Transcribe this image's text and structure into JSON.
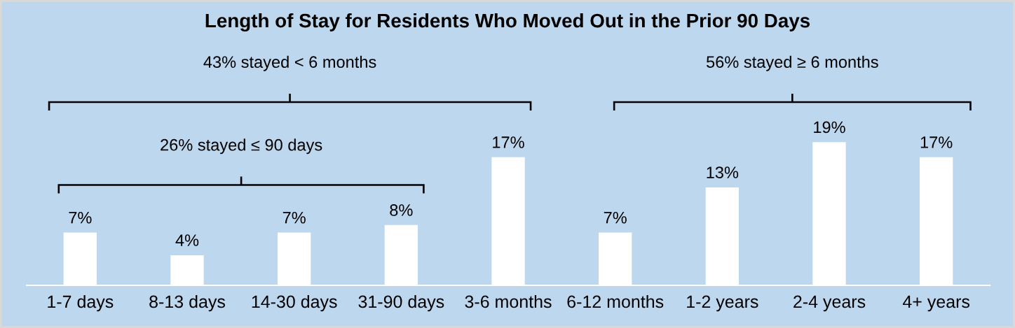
{
  "chart_data": {
    "type": "bar",
    "title": "Length of Stay for Residents Who Moved Out in the Prior 90 Days",
    "categories": [
      "1-7 days",
      "8-13 days",
      "14-30 days",
      "31-90 days",
      "3-6 months",
      "6-12 months",
      "1-2 years",
      "2-4 years",
      "4+ years"
    ],
    "values": [
      7,
      4,
      7,
      8,
      17,
      7,
      13,
      19,
      17
    ],
    "value_labels": [
      "7%",
      "4%",
      "7%",
      "8%",
      "17%",
      "7%",
      "13%",
      "19%",
      "17%"
    ],
    "color": "#ffffff",
    "annotations": [
      "43% stayed < 6 months",
      "56% stayed ≥ 6 months",
      "26% stayed ≤ 90 days"
    ],
    "grid": false
  }
}
